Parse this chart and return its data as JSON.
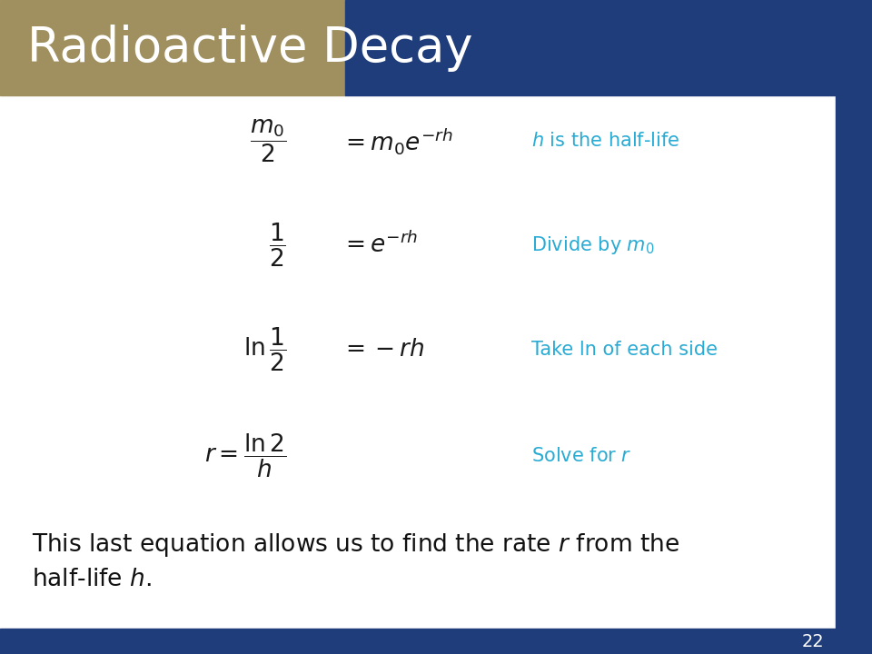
{
  "title": "Radioactive Decay",
  "title_bg_gold": "#A09060",
  "title_bg_blue": "#1F3D7A",
  "title_text_color": "#FFFFFF",
  "slide_bg": "#FFFFFF",
  "border_color": "#1F3D7A",
  "annotation_color": "#29ABD4",
  "equation_color": "#1A1A1A",
  "body_text_color": "#111111",
  "page_number": "22",
  "eq1_lhs": "$\\dfrac{m_0}{2}$",
  "eq1_rhs": "$= m_0e^{-rh}$",
  "eq1_note": "$h$ is the half-life",
  "eq2_lhs": "$\\dfrac{1}{2}$",
  "eq2_rhs": "$= e^{-rh}$",
  "eq2_note": "Divide by $m_0$",
  "eq3_lhs": "$\\ln \\dfrac{1}{2}$",
  "eq3_rhs": "$= -rh$",
  "eq3_note": "Take ln of each side",
  "eq4_full": "$r = \\dfrac{\\ln 2}{h}$",
  "eq4_note": "Solve for $r$",
  "body_line1": "This last equation allows us to find the rate $r$ from the",
  "body_line2": "half-life $h$."
}
